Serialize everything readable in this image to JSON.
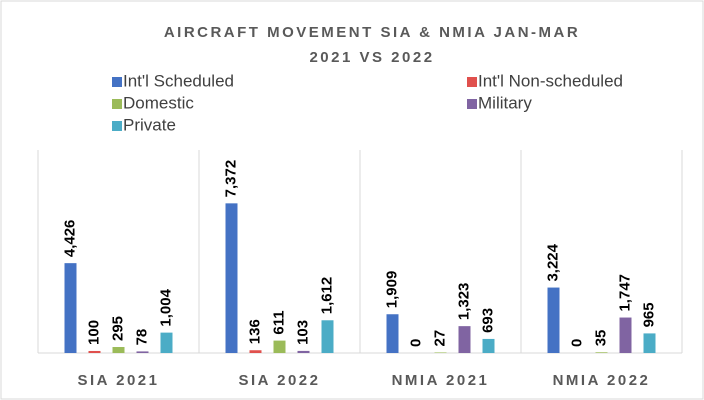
{
  "chart_data": {
    "type": "bar",
    "title": [
      "AIRCRAFT MOVEMENT SIA & NMIA JAN-MAR",
      "2021 VS 2022"
    ],
    "categories": [
      "SIA 2021",
      "SIA 2022",
      "NMIA 2021",
      "NMIA 2022"
    ],
    "series": [
      {
        "name": "Int'l Scheduled",
        "color": "#4472c4",
        "values": [
          4426,
          7372,
          1909,
          3224
        ],
        "value_labels": [
          "4,426",
          "7,372",
          "1,909",
          "3,224"
        ]
      },
      {
        "name": "Int'l Non-scheduled",
        "color": "#e0504d",
        "values": [
          100,
          136,
          0,
          0
        ],
        "value_labels": [
          "100",
          "136",
          "0",
          "0"
        ]
      },
      {
        "name": "Domestic",
        "color": "#9bbb59",
        "values": [
          295,
          611,
          27,
          35
        ],
        "value_labels": [
          "295",
          "611",
          "27",
          "35"
        ]
      },
      {
        "name": "Military",
        "color": "#8064a2",
        "values": [
          78,
          103,
          1323,
          1747
        ],
        "value_labels": [
          "78",
          "103",
          "1,323",
          "1,747"
        ]
      },
      {
        "name": "Private",
        "color": "#4bacc6",
        "values": [
          1004,
          1612,
          693,
          965
        ],
        "value_labels": [
          "1,004",
          "1,612",
          "693",
          "965"
        ]
      }
    ],
    "ylim": [
      0,
      10000
    ]
  }
}
